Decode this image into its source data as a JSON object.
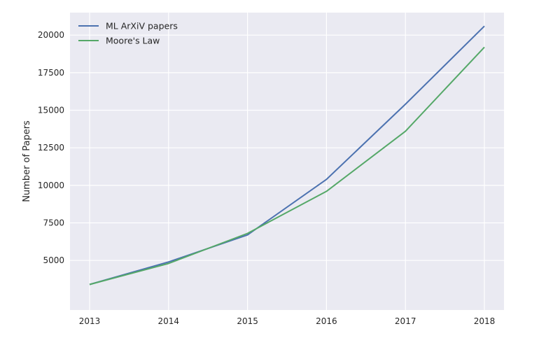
{
  "chart_data": {
    "type": "line",
    "title": "",
    "xlabel": "",
    "ylabel": "Number of Papers",
    "x": [
      2013,
      2014,
      2015,
      2016,
      2017,
      2018
    ],
    "xticks": [
      "2013",
      "2014",
      "2015",
      "2016",
      "2017",
      "2018"
    ],
    "yticks": [
      "5000",
      "7500",
      "10000",
      "12500",
      "15000",
      "17500",
      "20000"
    ],
    "ylim": [
      1700,
      21500
    ],
    "grid": true,
    "legend_placement": "top-left",
    "background_color": "#eaeaf2",
    "series": [
      {
        "name": "ML ArXiV papers",
        "color": "#4c72b0",
        "values": [
          3400,
          4900,
          6700,
          10400,
          15400,
          20600
        ]
      },
      {
        "name": "Moore's Law",
        "color": "#55a868",
        "values": [
          3400,
          4800,
          6800,
          9600,
          13600,
          19200
        ]
      }
    ]
  }
}
